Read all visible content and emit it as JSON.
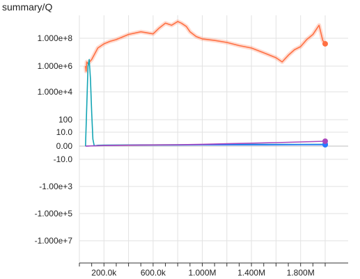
{
  "chart_data": {
    "type": "line",
    "title": "summary/Q",
    "xlabel": "",
    "ylabel": "",
    "yscale": "symlog",
    "grid": true,
    "xlim": [
      0,
      2000000
    ],
    "x_ticks": [
      {
        "value": 200000,
        "label": "200.0k"
      },
      {
        "value": 600000,
        "label": "600.0k"
      },
      {
        "value": 1000000,
        "label": "1.000M"
      },
      {
        "value": 1400000,
        "label": "1.400M"
      },
      {
        "value": 1800000,
        "label": "1.800M"
      }
    ],
    "y_ticks": [
      {
        "value": 100000000,
        "label": "1.000e+8"
      },
      {
        "value": 1000000,
        "label": "1.000e+6"
      },
      {
        "value": 10000,
        "label": "1.000e+4"
      },
      {
        "value": 100,
        "label": "100"
      },
      {
        "value": 10,
        "label": "10.0"
      },
      {
        "value": 0,
        "label": "0.00"
      },
      {
        "value": -10,
        "label": "-10.0"
      },
      {
        "value": -1000,
        "label": "-1.00e+3"
      },
      {
        "value": -100000,
        "label": "-1.000e+5"
      },
      {
        "value": -10000000,
        "label": "-1.000e+7"
      }
    ],
    "series": [
      {
        "color": "#ff7043",
        "x": [
          50000,
          55000,
          60000,
          70000,
          100000,
          150000,
          200000,
          250000,
          300000,
          400000,
          500000,
          600000,
          650000,
          700000,
          750000,
          800000,
          830000,
          870000,
          900000,
          950000,
          1000000,
          1100000,
          1200000,
          1300000,
          1400000,
          1500000,
          1600000,
          1650000,
          1700000,
          1750000,
          1800000,
          1850000,
          1900000,
          1950000,
          1980000,
          2000000
        ],
        "y": [
          1000000,
          400000,
          2000000,
          1500000,
          3000000,
          20000000,
          40000000,
          60000000,
          80000000,
          150000000,
          200000000,
          160000000,
          300000000,
          500000000,
          400000000,
          600000000,
          500000000,
          350000000,
          200000000,
          120000000,
          90000000,
          70000000,
          50000000,
          30000000,
          20000000,
          9000000,
          4000000,
          2000000,
          6000000,
          15000000,
          25000000,
          80000000,
          150000000,
          400000000,
          70000000,
          40000000
        ]
      },
      {
        "color": "#12a4b4",
        "x": [
          50000,
          70000,
          80000,
          90000,
          100000,
          110000,
          120000,
          130000,
          150000,
          200000,
          300000,
          500000,
          800000,
          1000000,
          1400000,
          1800000,
          2000000
        ],
        "y": [
          0,
          1000000,
          3000000,
          100000,
          300,
          5,
          0.5,
          0.3,
          0.6,
          0.7,
          0.8,
          0.9,
          1,
          1.1,
          1.2,
          1.2,
          1.3
        ]
      },
      {
        "color": "#2979ff",
        "x": [
          50000,
          200000,
          500000,
          800000,
          1000000,
          1400000,
          1800000,
          2000000
        ],
        "y": [
          0,
          0.5,
          0.7,
          0.8,
          0.9,
          0.9,
          1,
          1
        ]
      },
      {
        "color": "#ab47bc",
        "x": [
          50000,
          200000,
          500000,
          800000,
          1000000,
          1200000,
          1400000,
          1600000,
          1800000,
          2000000
        ],
        "y": [
          0,
          0.4,
          0.8,
          1.0,
          1.3,
          1.7,
          2.1,
          2.5,
          3.0,
          3.5
        ]
      }
    ]
  }
}
